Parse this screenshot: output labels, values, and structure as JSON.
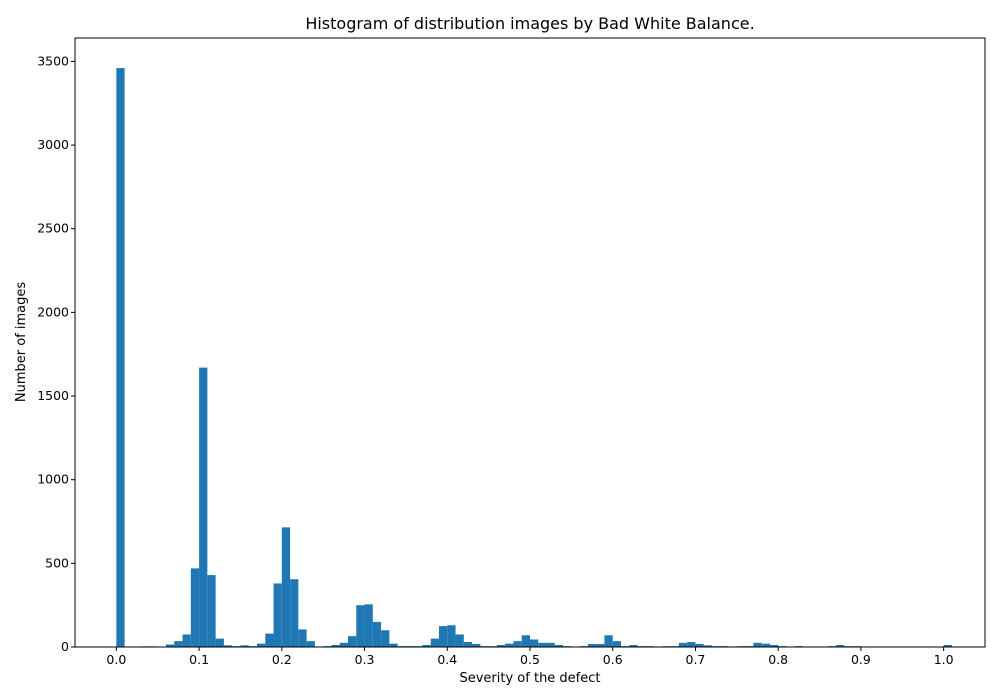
{
  "chart_data": {
    "type": "bar",
    "title": "Histogram of distribution images by Bad White Balance.",
    "xlabel": "Severity of the defect",
    "ylabel": "Number of images",
    "xlim": [
      -0.05,
      1.05
    ],
    "ylim": [
      0,
      3640
    ],
    "x_ticks": [
      0.0,
      0.1,
      0.2,
      0.3,
      0.4,
      0.5,
      0.6,
      0.7,
      0.8,
      0.9,
      1.0
    ],
    "x_tick_labels": [
      "0.0",
      "0.1",
      "0.2",
      "0.3",
      "0.4",
      "0.5",
      "0.6",
      "0.7",
      "0.8",
      "0.9",
      "1.0"
    ],
    "y_ticks": [
      0,
      500,
      1000,
      1500,
      2000,
      2500,
      3000,
      3500
    ],
    "y_tick_labels": [
      "0",
      "500",
      "1000",
      "1500",
      "2000",
      "2500",
      "3000",
      "3500"
    ],
    "grid": false,
    "legend": "none",
    "bar_color": "#1f77b4",
    "bin_start": 0.0,
    "bin_width": 0.01,
    "counts": [
      3460,
      0,
      0,
      4,
      4,
      0,
      15,
      35,
      75,
      470,
      1670,
      430,
      50,
      10,
      5,
      10,
      5,
      20,
      80,
      380,
      715,
      405,
      105,
      35,
      0,
      5,
      12,
      25,
      65,
      250,
      255,
      150,
      100,
      20,
      5,
      5,
      5,
      12,
      50,
      125,
      130,
      75,
      30,
      18,
      5,
      5,
      12,
      20,
      35,
      70,
      45,
      25,
      25,
      12,
      5,
      0,
      5,
      18,
      18,
      70,
      35,
      5,
      12,
      5,
      5,
      0,
      5,
      5,
      25,
      30,
      18,
      10,
      5,
      5,
      0,
      5,
      5,
      25,
      20,
      12,
      5,
      0,
      5,
      0,
      0,
      0,
      5,
      12,
      5,
      5,
      0,
      0,
      0,
      0,
      0,
      0,
      0,
      0,
      0,
      0,
      12
    ]
  }
}
